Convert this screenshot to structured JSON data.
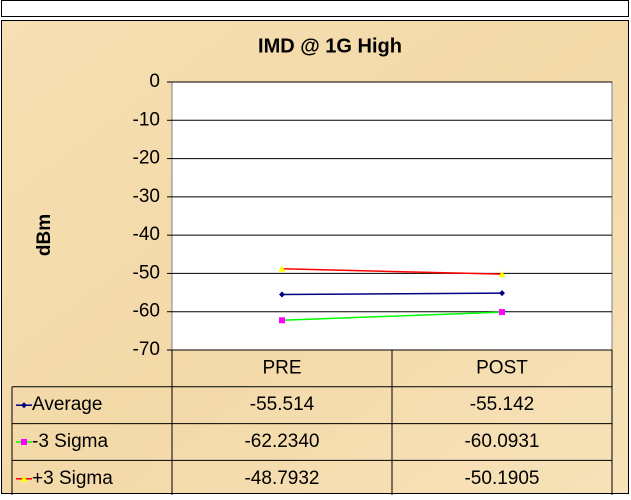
{
  "chart_data": {
    "type": "line",
    "title": "IMD @ 1G High",
    "y_label": "dBm",
    "categories": [
      "PRE",
      "POST"
    ],
    "series": [
      {
        "name": "Average",
        "color": "#000080",
        "marker_color": "#000080",
        "marker": "diamond",
        "values": [
          -55.514,
          -55.142
        ]
      },
      {
        "name": "-3 Sigma",
        "color": "#00ff00",
        "marker_color": "#ff00ff",
        "marker": "square",
        "values": [
          -62.234,
          -60.0931
        ],
        "value_labels": [
          "-62.2340",
          "-60.0931"
        ]
      },
      {
        "name": "+3 Sigma",
        "color": "#ff0000",
        "marker_color": "#ffff00",
        "marker": "triangle",
        "values": [
          -48.7932,
          -50.1905
        ]
      }
    ],
    "ylim": [
      -70,
      0
    ],
    "yticks": [
      0,
      -10,
      -20,
      -30,
      -40,
      -50,
      -60,
      -70
    ],
    "grid": true,
    "data_table": true
  }
}
